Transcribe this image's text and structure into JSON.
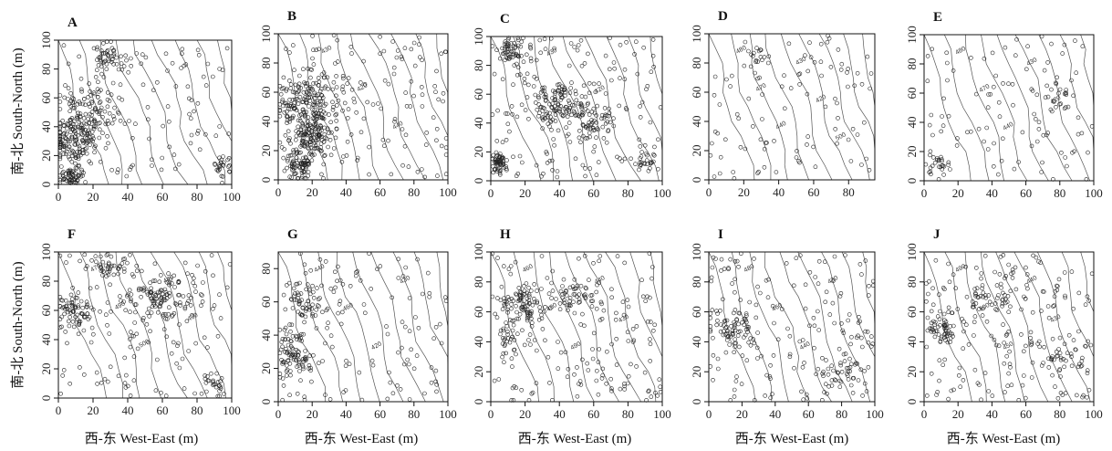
{
  "figure": {
    "xlabel": "西-东 West-East (m)",
    "ylabel": "南-北 South-North (m)"
  },
  "chart_data": [
    {
      "panel": "A",
      "type": "scatter",
      "xlim": [
        0,
        100
      ],
      "ylim": [
        0,
        100
      ],
      "xticks": [
        0,
        20,
        40,
        60,
        80,
        100
      ],
      "yticks": [
        0,
        20,
        40,
        60,
        80,
        100
      ],
      "contour_labels": [],
      "n_points": 480,
      "clusters": [
        [
          10,
          30,
          12,
          16,
          0.3
        ],
        [
          20,
          55,
          14,
          14,
          0.2
        ],
        [
          8,
          6,
          6,
          5,
          0.1
        ],
        [
          30,
          88,
          10,
          8,
          0.1
        ],
        [
          95,
          14,
          5,
          5,
          0.04
        ]
      ]
    },
    {
      "panel": "B",
      "type": "scatter",
      "xlim": [
        0,
        100
      ],
      "ylim": [
        0,
        100
      ],
      "xticks": [
        0,
        20,
        40,
        60,
        80,
        100
      ],
      "yticks": [
        0,
        20,
        40,
        60,
        80,
        100
      ],
      "contour_labels": [
        "430",
        "420",
        "440"
      ],
      "n_points": 520,
      "clusters": [
        [
          20,
          30,
          12,
          14,
          0.35
        ],
        [
          18,
          55,
          14,
          12,
          0.3
        ],
        [
          12,
          10,
          6,
          8,
          0.1
        ]
      ]
    },
    {
      "panel": "C",
      "type": "scatter",
      "xlim": [
        0,
        100
      ],
      "ylim": [
        0,
        100
      ],
      "xticks": [
        0,
        20,
        40,
        60,
        80,
        100
      ],
      "yticks": [
        0,
        20,
        40,
        60,
        80,
        100
      ],
      "contour_labels": [
        "430",
        "420"
      ],
      "n_points": 460,
      "clusters": [
        [
          40,
          55,
          14,
          12,
          0.3
        ],
        [
          12,
          90,
          6,
          8,
          0.12
        ],
        [
          5,
          12,
          4,
          6,
          0.08
        ],
        [
          60,
          40,
          10,
          10,
          0.1
        ],
        [
          90,
          15,
          6,
          8,
          0.06
        ]
      ]
    },
    {
      "panel": "D",
      "type": "scatter",
      "xlim": [
        0,
        95
      ],
      "ylim": [
        0,
        100
      ],
      "xticks": [
        0,
        20,
        40,
        60,
        80
      ],
      "yticks": [
        0,
        20,
        40,
        60,
        80,
        100
      ],
      "contour_labels": [
        "480",
        "470",
        "440",
        "430",
        "420",
        "500"
      ],
      "n_points": 110,
      "clusters": [
        [
          30,
          85,
          6,
          6,
          0.15
        ]
      ]
    },
    {
      "panel": "E",
      "type": "scatter",
      "xlim": [
        0,
        100
      ],
      "ylim": [
        0,
        100
      ],
      "xticks": [
        0,
        20,
        40,
        60,
        80,
        100
      ],
      "yticks": [
        0,
        20,
        40,
        60,
        80,
        100
      ],
      "contour_labels": [
        "480",
        "470",
        "440",
        "430",
        "420"
      ],
      "n_points": 140,
      "clusters": [
        [
          80,
          55,
          8,
          10,
          0.2
        ],
        [
          8,
          10,
          6,
          8,
          0.15
        ]
      ]
    },
    {
      "panel": "F",
      "type": "scatter",
      "xlim": [
        0,
        100
      ],
      "ylim": [
        0,
        100
      ],
      "xticks": [
        0,
        20,
        40,
        60,
        80,
        100
      ],
      "yticks": [
        0,
        20,
        40,
        60,
        80,
        100
      ],
      "contour_labels": [
        "470",
        "490",
        "500",
        "440",
        "430"
      ],
      "n_points": 360,
      "clusters": [
        [
          60,
          70,
          18,
          12,
          0.3
        ],
        [
          10,
          60,
          8,
          12,
          0.15
        ],
        [
          90,
          10,
          6,
          6,
          0.06
        ],
        [
          30,
          90,
          10,
          6,
          0.1
        ]
      ]
    },
    {
      "panel": "G",
      "type": "scatter",
      "xlim": [
        0,
        100
      ],
      "ylim": [
        0,
        90
      ],
      "xticks": [
        0,
        20,
        40,
        60,
        80,
        100
      ],
      "yticks": [
        0,
        20,
        40,
        60,
        80
      ],
      "contour_labels": [
        "440",
        "460",
        "420",
        "430"
      ],
      "n_points": 260,
      "clusters": [
        [
          10,
          30,
          8,
          14,
          0.35
        ],
        [
          15,
          60,
          10,
          10,
          0.2
        ]
      ]
    },
    {
      "panel": "H",
      "type": "scatter",
      "xlim": [
        0,
        100
      ],
      "ylim": [
        0,
        100
      ],
      "xticks": [
        0,
        20,
        40,
        60,
        80,
        100
      ],
      "yticks": [
        0,
        20,
        40,
        60,
        80,
        100
      ],
      "contour_labels": [
        "460",
        "480",
        "490",
        "440",
        "430"
      ],
      "n_points": 320,
      "clusters": [
        [
          20,
          65,
          10,
          10,
          0.25
        ],
        [
          50,
          70,
          14,
          8,
          0.15
        ],
        [
          10,
          40,
          6,
          10,
          0.1
        ]
      ]
    },
    {
      "panel": "I",
      "type": "scatter",
      "xlim": [
        0,
        100
      ],
      "ylim": [
        0,
        100
      ],
      "xticks": [
        0,
        20,
        40,
        60,
        80,
        100
      ],
      "yticks": [
        0,
        20,
        40,
        60,
        80,
        100
      ],
      "contour_labels": [
        "480",
        "460",
        "440",
        "430"
      ],
      "n_points": 260,
      "clusters": [
        [
          15,
          50,
          10,
          12,
          0.2
        ],
        [
          80,
          20,
          12,
          10,
          0.15
        ]
      ]
    },
    {
      "panel": "J",
      "type": "scatter",
      "xlim": [
        0,
        100
      ],
      "ylim": [
        0,
        100
      ],
      "xticks": [
        0,
        20,
        40,
        60,
        80,
        100
      ],
      "yticks": [
        0,
        20,
        40,
        60,
        80,
        100
      ],
      "contour_labels": [
        "490",
        "500",
        "450",
        "440",
        "430"
      ],
      "n_points": 300,
      "clusters": [
        [
          40,
          70,
          16,
          10,
          0.2
        ],
        [
          10,
          50,
          8,
          10,
          0.15
        ],
        [
          80,
          30,
          10,
          10,
          0.1
        ]
      ]
    }
  ]
}
